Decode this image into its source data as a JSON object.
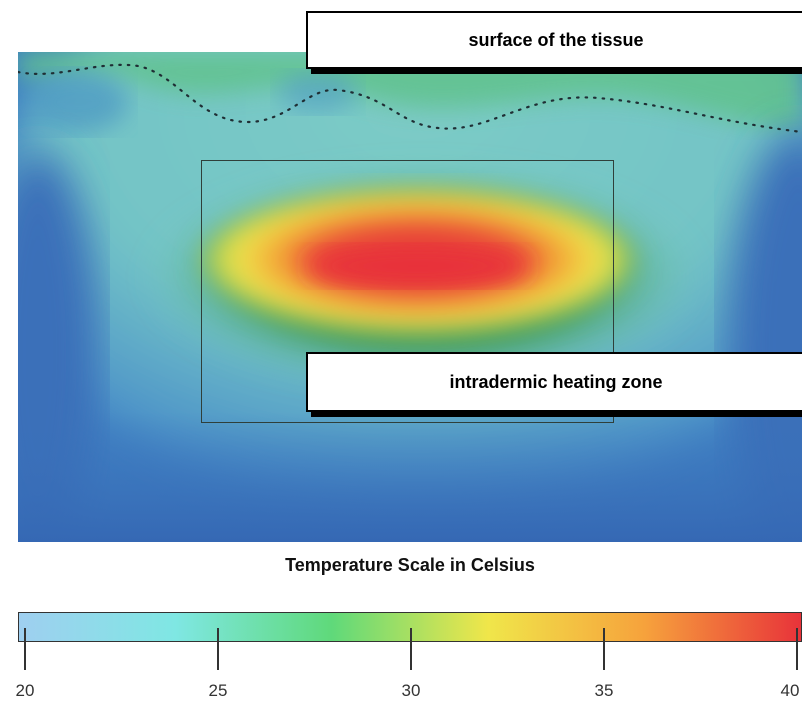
{
  "labels": {
    "surface": "surface of the tissue",
    "zone": "intradermic heating zone"
  },
  "scale": {
    "title": "Temperature Scale in Celsius",
    "min": 20,
    "max": 40,
    "ticks": [
      "20",
      "25",
      "30",
      "35",
      "40"
    ],
    "colors": [
      "#9fcff0",
      "#7fe7e3",
      "#5fd97a",
      "#f0e64a",
      "#f6a23c",
      "#e8333a"
    ]
  },
  "colors": {
    "deep_tissue": "#3f7fc2",
    "tissue": "#78c9c6",
    "surface_band": "#5fbf8c",
    "hot_core": "#e8333a"
  }
}
